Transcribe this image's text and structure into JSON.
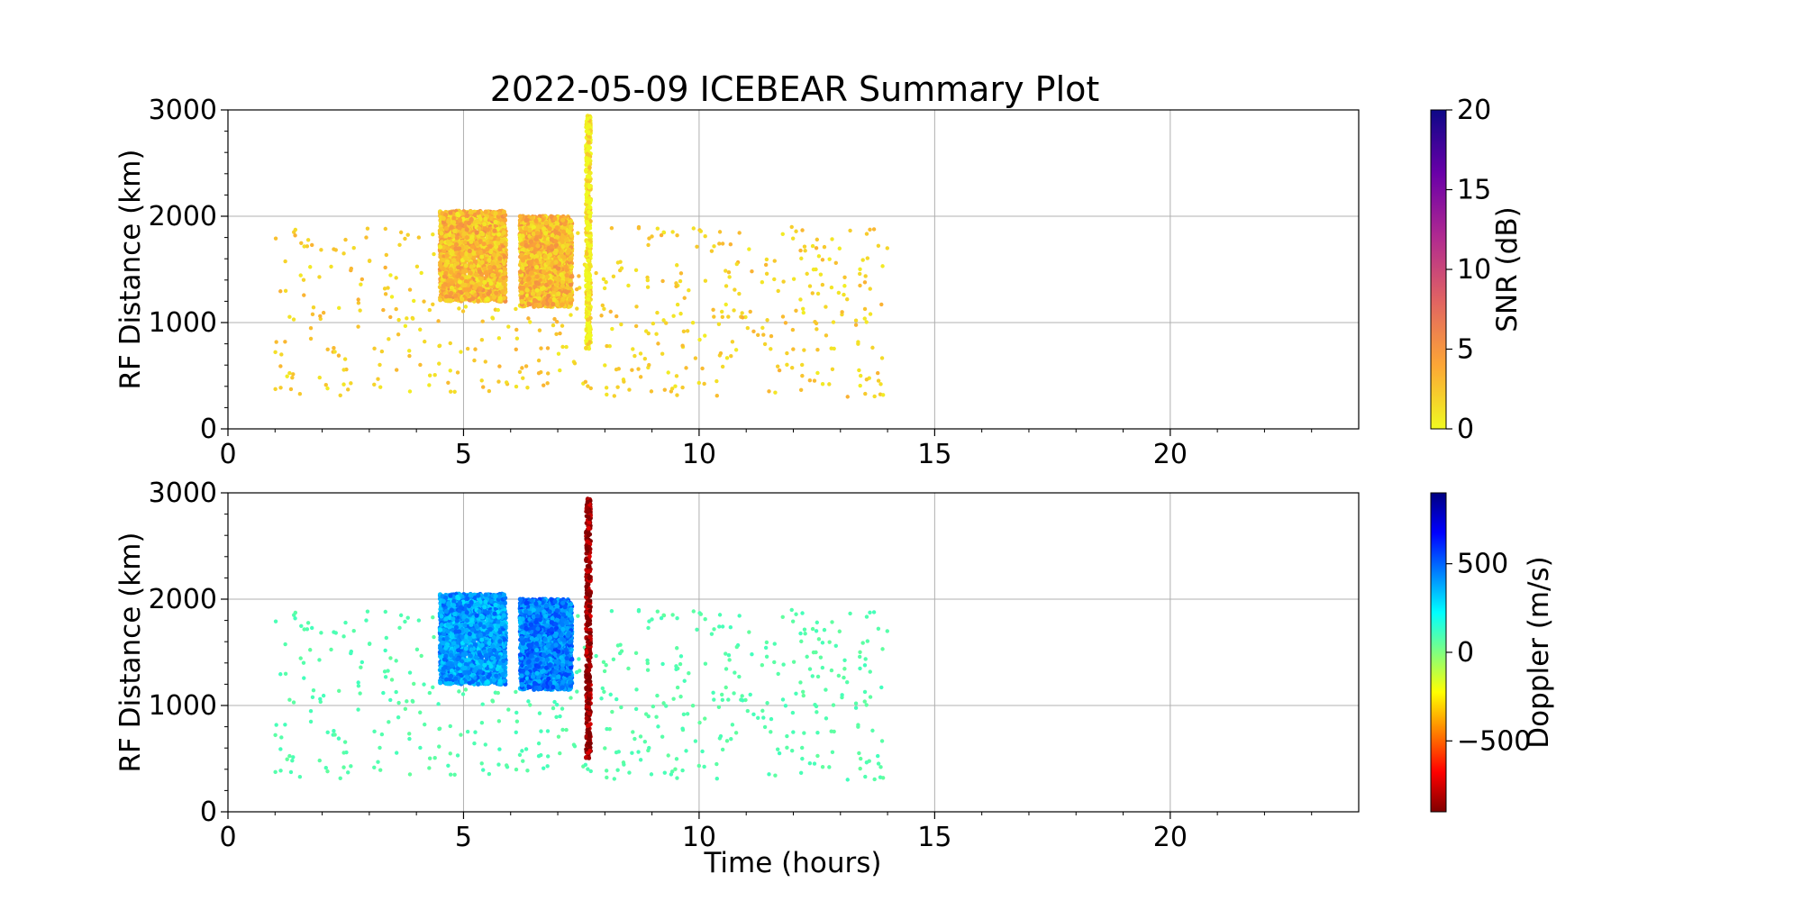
{
  "chart_data": [
    {
      "type": "scatter",
      "title": "2022-05-09 ICEBEAR Summary Plot",
      "xlabel": "",
      "ylabel": "RF Distance (km)",
      "xlim": [
        0,
        24
      ],
      "ylim": [
        0,
        3000
      ],
      "x_ticks": [
        0,
        5,
        10,
        15,
        20
      ],
      "y_ticks": [
        0,
        1000,
        2000,
        3000
      ],
      "grid": true,
      "colorbar": {
        "label": "SNR (dB)",
        "range": [
          0,
          20
        ],
        "ticks": [
          0,
          5,
          10,
          15,
          20
        ],
        "colormap": "plasma_r",
        "colors": [
          "#f0f921",
          "#fca636",
          "#e16462",
          "#b12a90",
          "#6a00a8",
          "#0d0887"
        ]
      },
      "dense_regions": [
        {
          "x_range": [
            4.5,
            5.9
          ],
          "y_range": [
            1200,
            2050
          ],
          "value": 3,
          "density": "high"
        },
        {
          "x_range": [
            6.2,
            7.3
          ],
          "y_range": [
            1150,
            2000
          ],
          "value": 3,
          "density": "high"
        },
        {
          "x_range": [
            7.6,
            7.7
          ],
          "y_range": [
            750,
            2950
          ],
          "value": 0.5,
          "density": "vertical line"
        }
      ],
      "scatter_region": {
        "x_range": [
          1.0,
          14.0
        ],
        "y_range": [
          300,
          1900
        ],
        "value": 2,
        "density": "sparse"
      }
    },
    {
      "type": "scatter",
      "title": "",
      "xlabel": "Time (hours)",
      "ylabel": "RF Distance (km)",
      "xlim": [
        0,
        24
      ],
      "ylim": [
        0,
        3000
      ],
      "x_ticks": [
        0,
        5,
        10,
        15,
        20
      ],
      "y_ticks": [
        0,
        1000,
        2000,
        3000
      ],
      "grid": true,
      "colorbar": {
        "label": "Doppler (m/s)",
        "range": [
          -900,
          900
        ],
        "ticks": [
          -500,
          0,
          500
        ],
        "tick_labels": [
          "−500",
          "0",
          "500"
        ],
        "colormap": "jet_r",
        "colors": [
          "#800000",
          "#ff0000",
          "#ff8000",
          "#ffff00",
          "#80ff80",
          "#00ffff",
          "#0080ff",
          "#0000ff",
          "#000080"
        ]
      },
      "dense_regions": [
        {
          "x_range": [
            4.5,
            5.9
          ],
          "y_range": [
            1200,
            2050
          ],
          "value": 400,
          "density": "high"
        },
        {
          "x_range": [
            6.2,
            7.3
          ],
          "y_range": [
            1150,
            2000
          ],
          "value": 450,
          "density": "high"
        },
        {
          "x_range": [
            7.6,
            7.7
          ],
          "y_range": [
            500,
            2950
          ],
          "value": -850,
          "density": "vertical line"
        }
      ],
      "scatter_region": {
        "x_range": [
          1.0,
          14.0
        ],
        "y_range": [
          300,
          1900
        ],
        "value": 80,
        "density": "sparse"
      }
    }
  ]
}
